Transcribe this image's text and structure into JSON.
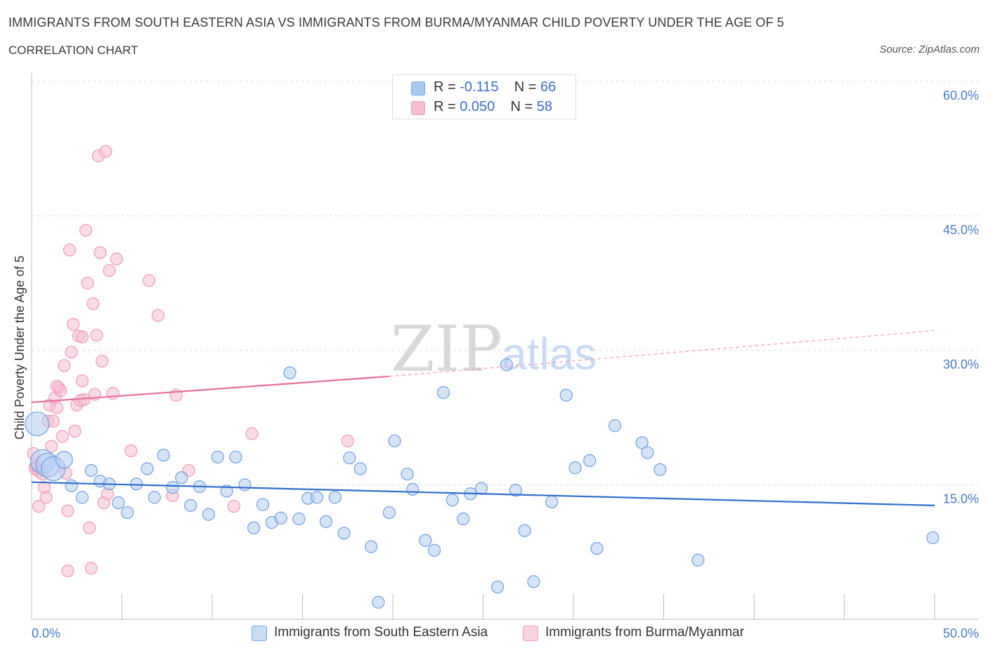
{
  "header": {
    "title": "IMMIGRANTS FROM SOUTH EASTERN ASIA VS IMMIGRANTS FROM BURMA/MYANMAR CHILD POVERTY UNDER THE AGE OF 5",
    "subtitle": "CORRELATION CHART",
    "source": "Source: ZipAtlas.com"
  },
  "legend": {
    "rows": [
      {
        "r_label": "R =",
        "r_value": "-0.115",
        "n_label": "N =",
        "n_value": "66",
        "color": "#a9c8f2"
      },
      {
        "r_label": "R =",
        "r_value": "0.050",
        "n_label": "N =",
        "n_value": "58",
        "color": "#f6bdd0"
      }
    ]
  },
  "bottom_legend": {
    "series_a": "Immigrants from South Eastern Asia",
    "series_b": "Immigrants from Burma/Myanmar"
  },
  "watermark": {
    "zip": "ZIP",
    "atlas": "atlas"
  },
  "chart_data": {
    "type": "scatter",
    "ylabel": "Child Poverty Under the Age of 5",
    "xlabel": "",
    "xlim": [
      0,
      50
    ],
    "ylim": [
      0,
      60
    ],
    "x_tick_labels": [
      "0.0%",
      "50.0%"
    ],
    "y_ticks": [
      15,
      30,
      45,
      60
    ],
    "y_tick_labels": [
      "15.0%",
      "30.0%",
      "45.0%",
      "60.0%"
    ],
    "grid": true,
    "colors": {
      "series_a": "#6f9fe0",
      "series_a_line": "#2f6fcf",
      "series_b": "#f08fb0",
      "series_b_line": "#e5709a"
    },
    "series": [
      {
        "name": "Immigrants from South Eastern Asia",
        "trend": {
          "x0": 0,
          "y0": 15.3,
          "x1": 50,
          "y1": 12.7
        },
        "points": [
          [
            0.3,
            21.8
          ],
          [
            0.6,
            17.6
          ],
          [
            0.9,
            17.2
          ],
          [
            1.2,
            16.8
          ],
          [
            1.8,
            17.8
          ],
          [
            2.2,
            14.9
          ],
          [
            2.8,
            13.6
          ],
          [
            3.3,
            16.6
          ],
          [
            3.8,
            15.4
          ],
          [
            4.3,
            15.1
          ],
          [
            4.8,
            13.0
          ],
          [
            5.3,
            11.9
          ],
          [
            5.8,
            15.1
          ],
          [
            6.4,
            16.8
          ],
          [
            6.8,
            13.6
          ],
          [
            7.3,
            18.3
          ],
          [
            7.8,
            14.7
          ],
          [
            8.3,
            15.8
          ],
          [
            8.8,
            12.7
          ],
          [
            9.3,
            14.8
          ],
          [
            9.8,
            11.7
          ],
          [
            10.3,
            18.1
          ],
          [
            10.8,
            14.3
          ],
          [
            11.3,
            18.1
          ],
          [
            11.8,
            15.0
          ],
          [
            12.3,
            10.2
          ],
          [
            12.8,
            12.8
          ],
          [
            13.3,
            10.8
          ],
          [
            13.8,
            11.3
          ],
          [
            14.3,
            27.5
          ],
          [
            14.8,
            11.2
          ],
          [
            15.3,
            13.5
          ],
          [
            15.8,
            13.6
          ],
          [
            16.3,
            10.9
          ],
          [
            16.8,
            13.6
          ],
          [
            17.3,
            9.6
          ],
          [
            17.6,
            18.0
          ],
          [
            18.2,
            16.8
          ],
          [
            18.8,
            8.1
          ],
          [
            19.2,
            1.9
          ],
          [
            19.8,
            11.9
          ],
          [
            20.1,
            19.9
          ],
          [
            20.8,
            16.2
          ],
          [
            21.1,
            14.5
          ],
          [
            21.8,
            8.8
          ],
          [
            22.3,
            7.7
          ],
          [
            22.8,
            25.3
          ],
          [
            23.3,
            13.3
          ],
          [
            23.9,
            11.2
          ],
          [
            24.3,
            14.0
          ],
          [
            24.9,
            14.6
          ],
          [
            25.8,
            3.6
          ],
          [
            26.3,
            28.4
          ],
          [
            26.8,
            14.4
          ],
          [
            27.3,
            9.9
          ],
          [
            27.8,
            4.2
          ],
          [
            28.8,
            13.1
          ],
          [
            29.6,
            25.0
          ],
          [
            30.1,
            16.9
          ],
          [
            30.9,
            17.7
          ],
          [
            31.3,
            7.9
          ],
          [
            32.3,
            21.6
          ],
          [
            33.8,
            19.7
          ],
          [
            34.1,
            18.6
          ],
          [
            34.8,
            16.7
          ],
          [
            36.9,
            6.6
          ],
          [
            49.9,
            9.1
          ]
        ],
        "sizes": [
          2,
          2,
          2,
          2,
          1.4,
          1,
          1,
          1,
          1,
          1,
          1,
          1,
          1,
          1,
          1,
          1,
          1,
          1,
          1,
          1,
          1,
          1,
          1,
          1,
          1,
          1,
          1,
          1,
          1,
          1,
          1,
          1,
          1,
          1,
          1,
          1,
          1,
          1,
          1,
          1,
          1,
          1,
          1,
          1,
          1,
          1,
          1,
          1,
          1,
          1,
          1,
          1,
          1,
          1,
          1,
          1,
          1,
          1,
          1,
          1,
          1,
          1,
          1,
          1,
          1,
          1,
          1
        ]
      },
      {
        "name": "Immigrants from Burma/Myanmar",
        "trend_solid": {
          "x0": 0,
          "y0": 24.2,
          "x1": 19.8,
          "y1": 27.1
        },
        "trend_dashed": {
          "x0": 19.8,
          "y0": 27.1,
          "x1": 50,
          "y1": 32.2
        },
        "points": [
          [
            0.1,
            18.5
          ],
          [
            0.2,
            17.0
          ],
          [
            0.4,
            16.5
          ],
          [
            0.6,
            16.2
          ],
          [
            0.4,
            12.6
          ],
          [
            0.7,
            14.7
          ],
          [
            0.8,
            13.6
          ],
          [
            0.9,
            22.1
          ],
          [
            1.0,
            23.9
          ],
          [
            1.1,
            19.3
          ],
          [
            1.2,
            22.1
          ],
          [
            1.3,
            24.7
          ],
          [
            1.4,
            23.6
          ],
          [
            1.5,
            25.8
          ],
          [
            1.6,
            25.5
          ],
          [
            1.7,
            20.4
          ],
          [
            1.8,
            28.3
          ],
          [
            1.9,
            16.3
          ],
          [
            2.0,
            12.1
          ],
          [
            2.1,
            41.2
          ],
          [
            2.2,
            29.8
          ],
          [
            2.3,
            32.9
          ],
          [
            2.4,
            21.0
          ],
          [
            2.5,
            23.9
          ],
          [
            2.6,
            31.6
          ],
          [
            2.7,
            24.4
          ],
          [
            2.8,
            26.6
          ],
          [
            3.0,
            43.4
          ],
          [
            3.1,
            37.5
          ],
          [
            3.2,
            10.2
          ],
          [
            3.3,
            5.7
          ],
          [
            3.4,
            35.2
          ],
          [
            3.5,
            25.1
          ],
          [
            3.6,
            31.7
          ],
          [
            3.7,
            51.7
          ],
          [
            3.8,
            40.9
          ],
          [
            3.9,
            28.8
          ],
          [
            4.0,
            13.0
          ],
          [
            4.1,
            52.2
          ],
          [
            4.2,
            14.0
          ],
          [
            4.3,
            38.9
          ],
          [
            4.5,
            25.2
          ],
          [
            4.7,
            40.2
          ],
          [
            5.5,
            18.8
          ],
          [
            6.5,
            37.8
          ],
          [
            7.0,
            33.9
          ],
          [
            7.8,
            13.8
          ],
          [
            8.0,
            25.0
          ],
          [
            8.7,
            16.6
          ],
          [
            11.2,
            12.6
          ],
          [
            12.2,
            20.7
          ],
          [
            17.5,
            19.9
          ],
          [
            2.0,
            5.4
          ],
          [
            0.2,
            16.8
          ],
          [
            0.3,
            17.1
          ],
          [
            1.4,
            26.0
          ],
          [
            2.8,
            31.5
          ],
          [
            2.9,
            24.5
          ]
        ]
      }
    ]
  }
}
